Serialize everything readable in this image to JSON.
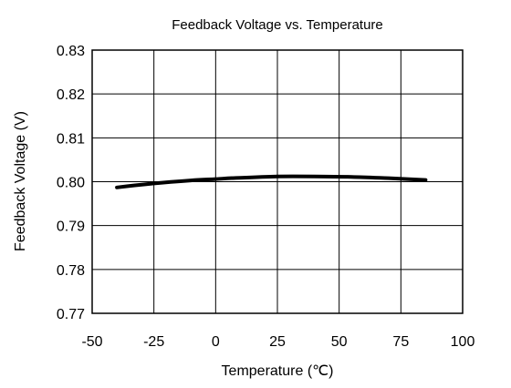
{
  "chart_data": {
    "type": "line",
    "title": "Feedback Voltage vs. Temperature",
    "xlabel": "Temperature (℃)",
    "ylabel": "Feedback Voltage (V)",
    "xlim": [
      -50,
      100
    ],
    "ylim": [
      0.77,
      0.83
    ],
    "xticks": [
      "-50",
      "-25",
      "0",
      "25",
      "50",
      "75",
      "100"
    ],
    "yticks": [
      "0.77",
      "0.78",
      "0.79",
      "0.80",
      "0.81",
      "0.82",
      "0.83"
    ],
    "grid": true,
    "legend": "none",
    "series": [
      {
        "color": "#000000",
        "x": [
          -40,
          -25,
          -10,
          0,
          10,
          25,
          40,
          55,
          70,
          85
        ],
        "y": [
          0.7987,
          0.7996,
          0.8003,
          0.8006,
          0.8009,
          0.8012,
          0.8012,
          0.8011,
          0.8008,
          0.8004
        ]
      }
    ]
  }
}
